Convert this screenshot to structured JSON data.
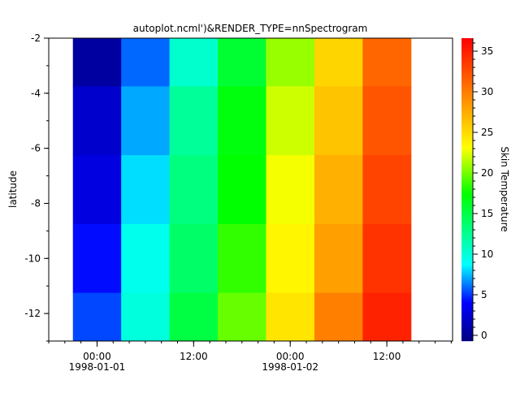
{
  "chart_data": {
    "type": "heatmap",
    "title": "autoplot.ncml')&RENDER_TYPE=nnSpectrogram",
    "xlabel": "",
    "ylabel": "latitude",
    "zlabel": "Skin Temperature",
    "xlim": [
      "1997-12-31T18:00",
      "1998-01-02T20:10"
    ],
    "ylim": [
      -13,
      -2
    ],
    "zlim": [
      -0.7,
      36.6
    ],
    "x_bin_hours": 6,
    "y_bin_degrees": 2.5,
    "x": [
      "1998-01-01T00:00",
      "1998-01-01T06:00",
      "1998-01-01T12:00",
      "1998-01-01T18:00",
      "1998-01-02T00:00",
      "1998-01-02T06:00",
      "1998-01-02T12:00"
    ],
    "y": [
      -2.5,
      -5,
      -7.5,
      -10,
      -12.5
    ],
    "z": [
      [
        0.5,
        5.9,
        10.4,
        15.7,
        20.8,
        25.3,
        31.2
      ],
      [
        2.1,
        7.1,
        12.2,
        17.0,
        22.0,
        26.2,
        32.1
      ],
      [
        2.9,
        8.1,
        13.1,
        17.4,
        22.9,
        27.3,
        33.0
      ],
      [
        4.2,
        9.3,
        13.9,
        18.5,
        23.6,
        28.2,
        33.9
      ],
      [
        5.3,
        9.9,
        15.1,
        19.7,
        24.5,
        29.8,
        34.8
      ]
    ],
    "colormap": [
      {
        "value": -0.7,
        "color": "#000080"
      },
      {
        "value": 4.0,
        "color": "#0000ff"
      },
      {
        "value": 8.7,
        "color": "#00ffff"
      },
      {
        "value": 17.4,
        "color": "#00ff00"
      },
      {
        "value": 23.1,
        "color": "#ffff00"
      },
      {
        "value": 36.6,
        "color": "#ff0000"
      }
    ],
    "yticks": [
      -2,
      -4,
      -6,
      -8,
      -10,
      -12
    ],
    "ytick_labels": [
      "-2",
      "-4",
      "-6",
      "-8",
      "-10",
      "-12"
    ],
    "xticks": [
      {
        "t": "1998-01-01T00:00",
        "label1": "00:00",
        "label2": "1998-01-01"
      },
      {
        "t": "1998-01-01T12:00",
        "label1": "12:00",
        "label2": ""
      },
      {
        "t": "1998-01-02T00:00",
        "label1": "00:00",
        "label2": "1998-01-02"
      },
      {
        "t": "1998-01-02T12:00",
        "label1": "12:00",
        "label2": ""
      }
    ],
    "zticks": [
      0,
      5,
      10,
      15,
      20,
      25,
      30,
      35
    ],
    "ztick_labels": [
      "0",
      "5",
      "10",
      "15",
      "20",
      "25",
      "30",
      "35"
    ],
    "grid": false,
    "legend": "colorbar-right"
  }
}
